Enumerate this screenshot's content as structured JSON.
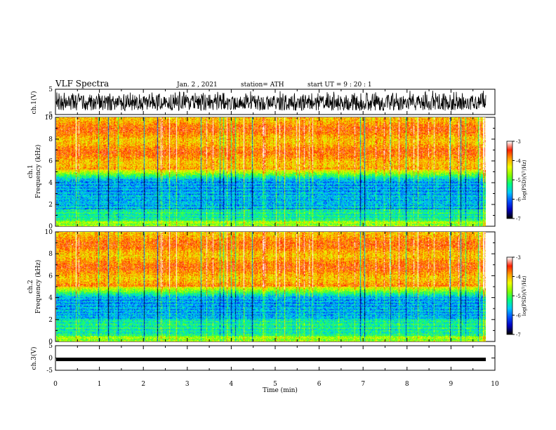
{
  "header": {
    "title": "VLF Spectra",
    "date": "Jan. 2 , 2021",
    "station": "station= ATH",
    "start": "start UT =  9 : 20 : 1"
  },
  "chart_data": [
    {
      "type": "line",
      "panel": "ch1-waveform",
      "ylabel": "ch.1(V)",
      "ylim": [
        -5,
        5
      ],
      "yticks": [
        "5",
        "-5"
      ],
      "xlim": [
        0,
        10
      ],
      "series": [
        {
          "signal": "noisy waveform",
          "mean": 0.3,
          "amplitude_range": [
            -3.5,
            4.5
          ]
        }
      ]
    },
    {
      "type": "heatmap",
      "panel": "ch1-spectrogram",
      "ylabel": "ch.1",
      "ylabel2": "Frequency (kHz)",
      "ylim": [
        0,
        10
      ],
      "yticks": [
        "0",
        "2",
        "4",
        "6",
        "8",
        "10"
      ],
      "xlim": [
        0,
        9.8
      ],
      "colorbar": {
        "label": "log(PSD)(V²/Hz)",
        "range": [
          -7,
          -3
        ],
        "ticks": [
          "-3",
          "-4",
          "-5",
          "-6",
          "-7"
        ]
      },
      "bands_khz": {
        "low_noise_blue": [
          0.5,
          4.2
        ],
        "transition_green": [
          4.2,
          5.2
        ],
        "high_power_red": [
          5.2,
          10
        ]
      }
    },
    {
      "type": "heatmap",
      "panel": "ch2-spectrogram",
      "ylabel": "ch.2",
      "ylabel2": "Frequency (kHz)",
      "ylim": [
        0,
        10
      ],
      "yticks": [
        "0",
        "2",
        "4",
        "6",
        "8",
        "10"
      ],
      "xlim": [
        0,
        9.8
      ],
      "colorbar": {
        "label": "log(PSD)(V²/Hz)",
        "range": [
          -7,
          -3
        ],
        "ticks": [
          "-3",
          "-4",
          "-5",
          "-6",
          "-7"
        ]
      },
      "bands_khz": {
        "low_noise_blue": [
          1.0,
          4.0
        ],
        "transition_green": [
          4.0,
          5.0
        ],
        "high_power_red": [
          5.0,
          10
        ]
      }
    },
    {
      "type": "line",
      "panel": "ch3-waveform",
      "ylabel": "ch.3(V)",
      "ylim": [
        -5,
        5
      ],
      "yticks": [
        "5",
        "0",
        "-5"
      ],
      "xlim": [
        0,
        10
      ],
      "series": [
        {
          "signal": "flat thick trace",
          "mean": 0
        }
      ]
    }
  ],
  "x_axis": {
    "label": "Time (min)",
    "ticks": [
      "0",
      "1",
      "2",
      "3",
      "4",
      "5",
      "6",
      "7",
      "8",
      "9",
      "10"
    ]
  },
  "colors": {
    "colormap": [
      "#000000",
      "#0000c0",
      "#0050ff",
      "#00c8ff",
      "#00ff80",
      "#80ff00",
      "#f0ff00",
      "#ffa000",
      "#ff2000",
      "#ffffff"
    ]
  }
}
